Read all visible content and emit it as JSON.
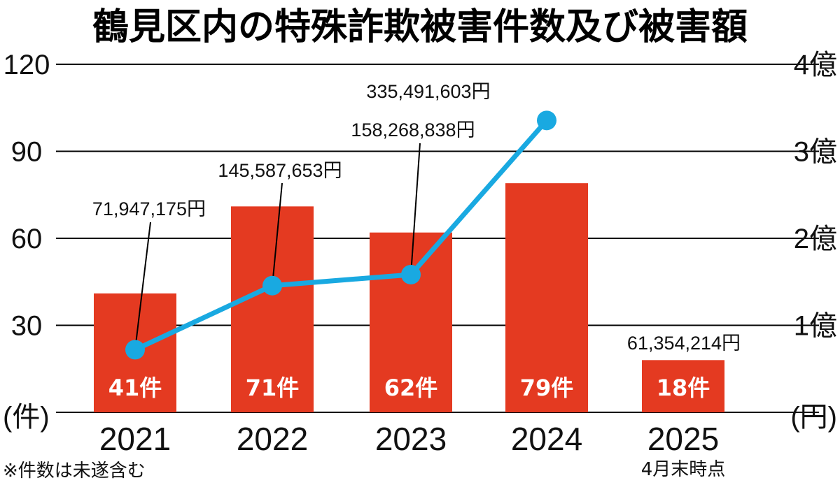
{
  "chart_data": {
    "type": "bar+line",
    "title": "鶴見区内の特殊詐欺被害件数及び被害額",
    "categories": [
      "2021",
      "2022",
      "2023",
      "2024",
      "2025"
    ],
    "category_subtitles": [
      "",
      "",
      "",
      "",
      "4月末時点"
    ],
    "series": [
      {
        "name": "被害件数",
        "axis": "left",
        "type": "bar",
        "color": "#e43a21",
        "values": [
          41,
          71,
          62,
          79,
          18
        ],
        "labels": [
          "41件",
          "71件",
          "62件",
          "79件",
          "18件"
        ]
      },
      {
        "name": "被害額",
        "axis": "right",
        "type": "line",
        "color": "#19a9e1",
        "values": [
          71947175,
          145587653,
          158268838,
          335491603,
          61354214
        ],
        "line_points": [
          true,
          true,
          true,
          true,
          false
        ],
        "labels": [
          "71,947,175円",
          "145,587,653円",
          "158,268,838円",
          "335,491,603円",
          "61,354,214円"
        ]
      }
    ],
    "left_axis": {
      "label": "(件)",
      "ylim": [
        0,
        120
      ],
      "ticks": [
        30,
        60,
        90,
        120
      ],
      "tick_labels": [
        "30",
        "60",
        "90",
        "120"
      ]
    },
    "right_axis": {
      "label": "(円)",
      "ylim": [
        0,
        400000000
      ],
      "ticks": [
        100000000,
        200000000,
        300000000,
        400000000
      ],
      "tick_labels": [
        "1億",
        "2億",
        "3億",
        "4億"
      ]
    },
    "grid": true,
    "footnote": "※件数は未遂含む"
  }
}
